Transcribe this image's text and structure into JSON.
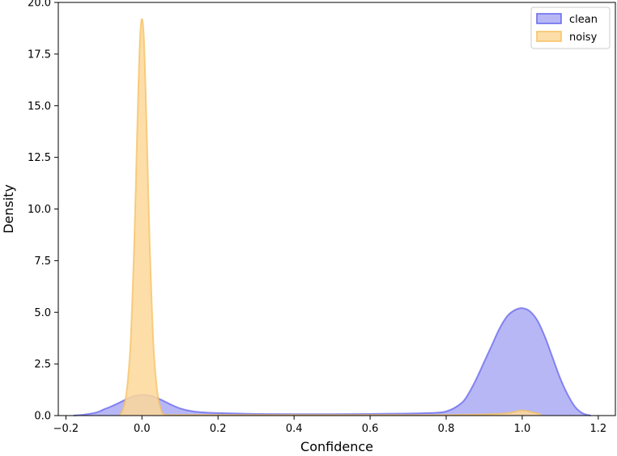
{
  "chart_data": {
    "type": "area",
    "title": "",
    "xlabel": "Confidence",
    "ylabel": "Density",
    "xlim": [
      -0.22,
      1.245
    ],
    "ylim": [
      0,
      20.0
    ],
    "grid": false,
    "legend_position": "top-right",
    "x_ticks": [
      {
        "value": -0.2,
        "label": "−0.2"
      },
      {
        "value": 0.0,
        "label": "0.0"
      },
      {
        "value": 0.2,
        "label": "0.2"
      },
      {
        "value": 0.4,
        "label": "0.4"
      },
      {
        "value": 0.6,
        "label": "0.6"
      },
      {
        "value": 0.8,
        "label": "0.8"
      },
      {
        "value": 1.0,
        "label": "1.0"
      },
      {
        "value": 1.2,
        "label": "1.2"
      }
    ],
    "y_ticks": [
      {
        "value": 0.0,
        "label": "0.0"
      },
      {
        "value": 2.5,
        "label": "2.5"
      },
      {
        "value": 5.0,
        "label": "5.0"
      },
      {
        "value": 7.5,
        "label": "7.5"
      },
      {
        "value": 10.0,
        "label": "10.0"
      },
      {
        "value": 12.5,
        "label": "12.5"
      },
      {
        "value": 15.0,
        "label": "15.0"
      },
      {
        "value": 17.5,
        "label": "17.5"
      },
      {
        "value": 20.0,
        "label": "20.0"
      }
    ],
    "series": [
      {
        "name": "clean",
        "color": "#6666ee",
        "fill": "#aaaaf5",
        "x": [
          -0.18,
          -0.15,
          -0.12,
          -0.1,
          -0.08,
          -0.06,
          -0.04,
          -0.02,
          0.0,
          0.02,
          0.04,
          0.06,
          0.08,
          0.1,
          0.12,
          0.15,
          0.2,
          0.3,
          0.4,
          0.5,
          0.6,
          0.7,
          0.75,
          0.8,
          0.84,
          0.86,
          0.88,
          0.9,
          0.92,
          0.94,
          0.96,
          0.98,
          1.0,
          1.02,
          1.04,
          1.06,
          1.08,
          1.1,
          1.12,
          1.14,
          1.16,
          1.18
        ],
        "y": [
          0.0,
          0.05,
          0.15,
          0.3,
          0.45,
          0.62,
          0.8,
          0.95,
          1.0,
          0.97,
          0.85,
          0.68,
          0.5,
          0.35,
          0.25,
          0.17,
          0.12,
          0.08,
          0.07,
          0.07,
          0.08,
          0.1,
          0.12,
          0.2,
          0.6,
          1.1,
          1.8,
          2.6,
          3.4,
          4.2,
          4.8,
          5.1,
          5.2,
          5.05,
          4.6,
          3.8,
          2.8,
          1.8,
          1.0,
          0.4,
          0.1,
          0.0
        ]
      },
      {
        "name": "noisy",
        "color": "#f5c060",
        "fill": "#fdd89a",
        "x": [
          -0.06,
          -0.05,
          -0.04,
          -0.03,
          -0.02,
          -0.015,
          -0.01,
          -0.005,
          0.0,
          0.005,
          0.01,
          0.015,
          0.02,
          0.03,
          0.04,
          0.05,
          0.06,
          0.1,
          0.2,
          0.4,
          0.6,
          0.8,
          0.95,
          1.0,
          1.05
        ],
        "y": [
          0.0,
          0.3,
          1.2,
          3.5,
          8.5,
          12.0,
          15.5,
          18.3,
          19.2,
          18.3,
          15.5,
          12.0,
          8.5,
          3.5,
          1.2,
          0.3,
          0.05,
          0.03,
          0.03,
          0.03,
          0.03,
          0.03,
          0.1,
          0.25,
          0.05
        ]
      }
    ]
  }
}
